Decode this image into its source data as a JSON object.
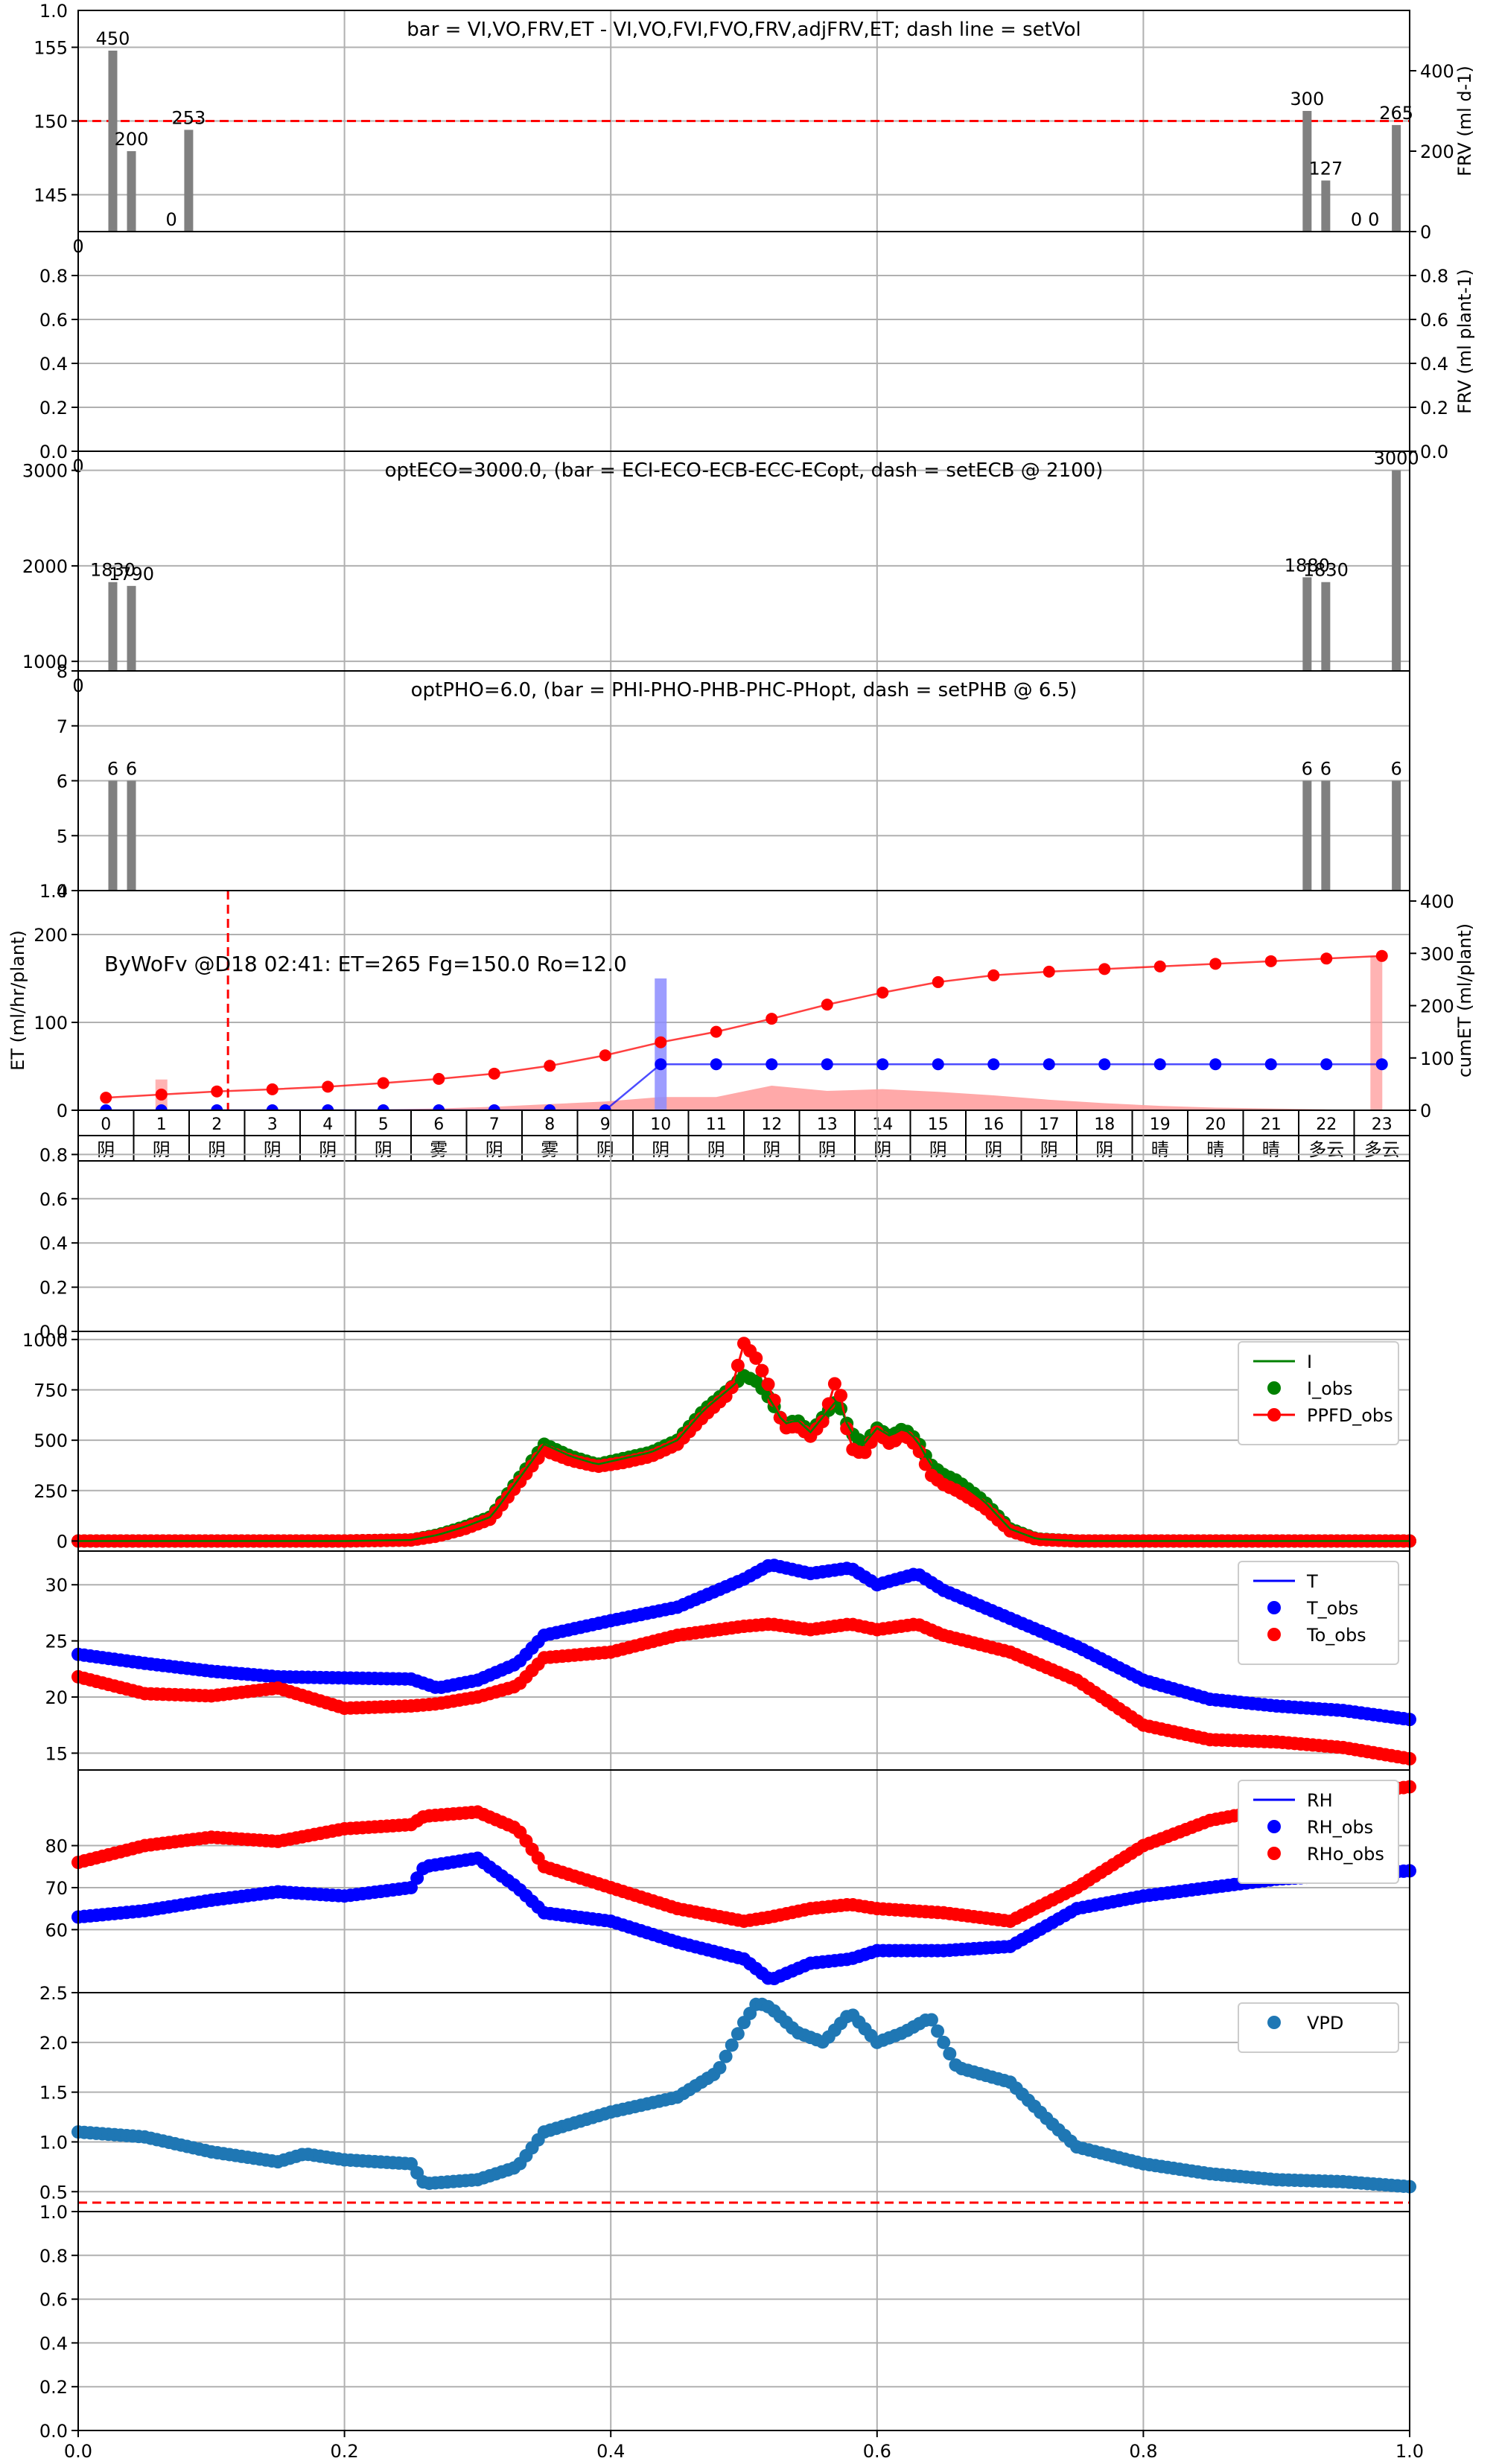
{
  "figure": {
    "background": "#ffffff",
    "grid_color": "#b0b0b0",
    "bar_color": "#808080",
    "red": "#ff0000",
    "green": "#008000",
    "blue": "#0000ff",
    "steel_blue": "#1f77b4",
    "salmon": "#ffa0a0",
    "light_blue": "#8c8cff"
  },
  "chart_data": [
    {
      "id": "p1",
      "type": "bar",
      "title": "bar = VI,VO,FRV,ET - VI,VO,FVI,FVO,FRV,adjFRV,ET; dash line = setVol",
      "ylim": [
        142.5,
        157.5
      ],
      "ylim_right": [
        0,
        550
      ],
      "yticks": [
        "145",
        "150",
        "155"
      ],
      "yticks_right": [
        "0",
        "200",
        "400"
      ],
      "y_top_label": "1.0",
      "y_bottom_corner_label": "0",
      "right_label": "FRV (ml d-1)",
      "hline": {
        "value": 150,
        "style": "dashed",
        "color": "red"
      },
      "bars": [
        {
          "x": 0.026,
          "value": 450,
          "label": "450"
        },
        {
          "x": 0.04,
          "value": 200,
          "label": "200"
        },
        {
          "x": 0.07,
          "value": 0,
          "label": "0"
        },
        {
          "x": 0.083,
          "value": 253,
          "label": "253"
        },
        {
          "x": 0.923,
          "value": 300,
          "label": "300"
        },
        {
          "x": 0.937,
          "value": 127,
          "label": "127"
        },
        {
          "x": 0.96,
          "value": 0,
          "label": "0"
        },
        {
          "x": 0.973,
          "value": 0,
          "label": "0"
        },
        {
          "x": 0.99,
          "value": 265,
          "label": "265"
        }
      ]
    },
    {
      "id": "p2",
      "type": "line",
      "ylim": [
        0,
        1
      ],
      "yticks": [
        "0.0",
        "0.2",
        "0.4",
        "0.6",
        "0.8"
      ],
      "yticks_right": [
        "0.0",
        "0.2",
        "0.4",
        "0.6",
        "0.8"
      ],
      "y_bottom_corner_label": "0",
      "right_label": "FRV (ml plant-1)"
    },
    {
      "id": "p3",
      "type": "bar",
      "title": "optECO=3000.0, (bar = ECI-ECO-ECB-ECC-ECopt, dash = setECB @ 2100)",
      "ylim": [
        900,
        3200
      ],
      "yticks": [
        "1000",
        "2000",
        "3000"
      ],
      "y_bottom_corner_label": "0",
      "bars": [
        {
          "x": 0.026,
          "value": 1830,
          "label": "1830"
        },
        {
          "x": 0.04,
          "value": 1790,
          "label": "1790"
        },
        {
          "x": 0.923,
          "value": 1880,
          "label": "1880"
        },
        {
          "x": 0.937,
          "value": 1830,
          "label": "1830"
        },
        {
          "x": 0.99,
          "value": 3000,
          "label": "3000"
        }
      ]
    },
    {
      "id": "p4",
      "type": "bar",
      "title": "optPHO=6.0, (bar = PHI-PHO-PHB-PHC-PHopt, dash = setPHB @ 6.5)",
      "ylim": [
        4,
        8
      ],
      "yticks": [
        "4",
        "5",
        "6",
        "7",
        "8"
      ],
      "bars": [
        {
          "x": 0.026,
          "value": 6,
          "label": "6"
        },
        {
          "x": 0.04,
          "value": 6,
          "label": "6"
        },
        {
          "x": 0.923,
          "value": 6,
          "label": "6"
        },
        {
          "x": 0.937,
          "value": 6,
          "label": "6"
        },
        {
          "x": 0.99,
          "value": 6,
          "label": "6"
        }
      ]
    },
    {
      "id": "p5",
      "type": "line",
      "annotation": "ByWoFv @D18 02:41: ET=265 Fg=150.0 Ro=12.0",
      "ylabel": "ET (ml/hr/plant)",
      "right_label": "cumET (ml/plant)",
      "ylim": [
        0,
        250
      ],
      "ylim_right": [
        0,
        420
      ],
      "yticks": [
        "0",
        "100",
        "200"
      ],
      "y_top_label": "1.0",
      "yticks_right": [
        "0",
        "100",
        "200",
        "300",
        "400"
      ],
      "vline": {
        "hour": 2.2,
        "style": "dashed",
        "color": "red"
      },
      "hours": [
        "0",
        "1",
        "2",
        "3",
        "4",
        "5",
        "6",
        "7",
        "8",
        "9",
        "10",
        "11",
        "12",
        "13",
        "14",
        "15",
        "16",
        "17",
        "18",
        "19",
        "20",
        "21",
        "22",
        "23"
      ],
      "weather": [
        "阴",
        "阴",
        "阴",
        "阴",
        "阴",
        "阴",
        "雾",
        "阴",
        "雾",
        "阴",
        "阴",
        "阴",
        "阴",
        "阴",
        "阴",
        "阴",
        "阴",
        "阴",
        "阴",
        "晴",
        "晴",
        "晴",
        "多云",
        "多云"
      ],
      "et_area": [
        0,
        0,
        1,
        1,
        1,
        1,
        2,
        4,
        7,
        10,
        15,
        15,
        28,
        22,
        24,
        21,
        17,
        12,
        8,
        5,
        3,
        2,
        1,
        0
      ],
      "pink_bars": [
        {
          "hour": 1,
          "value": 35
        },
        {
          "hour": 22.9,
          "value": 175
        }
      ],
      "blue_bar": {
        "hour": 10,
        "value": 150
      },
      "cum_et": [
        24,
        30,
        36,
        40,
        45,
        52,
        60,
        70,
        85,
        105,
        130,
        150,
        175,
        202,
        225,
        245,
        258,
        265,
        270,
        275,
        280,
        285,
        290,
        295
      ],
      "blue_line": {
        "start_hour": 10,
        "before": 0,
        "after": 88
      }
    },
    {
      "id": "p6",
      "type": "line",
      "ylim": [
        0,
        1
      ],
      "yticks": [
        "0.0",
        "0.2",
        "0.4",
        "0.6",
        "0.8"
      ]
    },
    {
      "id": "p7",
      "type": "line",
      "ylim": [
        -50,
        1040
      ],
      "yticks": [
        "0",
        "250",
        "500",
        "750",
        "1000"
      ],
      "series": [
        {
          "name": "I",
          "key": "I",
          "style": "line",
          "color": "green"
        },
        {
          "name": "I_obs",
          "key": "I_obs",
          "style": "dot",
          "color": "green"
        },
        {
          "name": "PPFD_obs",
          "key": "PPFD_obs",
          "style": "line+dot",
          "color": "red"
        }
      ],
      "x": [
        0.0,
        0.05,
        0.1,
        0.15,
        0.2,
        0.25,
        0.27,
        0.29,
        0.31,
        0.33,
        0.35,
        0.37,
        0.39,
        0.41,
        0.43,
        0.45,
        0.47,
        0.49,
        0.5,
        0.51,
        0.52,
        0.53,
        0.54,
        0.55,
        0.56,
        0.57,
        0.58,
        0.59,
        0.6,
        0.61,
        0.62,
        0.63,
        0.64,
        0.65,
        0.66,
        0.68,
        0.7,
        0.72,
        0.75,
        0.8,
        0.85,
        0.9,
        0.95,
        1.0
      ],
      "I_obs": [
        0,
        0,
        0,
        0,
        0,
        5,
        30,
        70,
        120,
        300,
        480,
        420,
        380,
        410,
        440,
        500,
        650,
        760,
        820,
        790,
        700,
        580,
        600,
        540,
        620,
        700,
        540,
        480,
        560,
        520,
        560,
        500,
        380,
        330,
        300,
        200,
        60,
        10,
        0,
        0,
        0,
        0,
        0,
        0
      ],
      "PPFD_obs": [
        0,
        0,
        0,
        0,
        0,
        5,
        25,
        60,
        110,
        280,
        450,
        400,
        370,
        390,
        420,
        480,
        620,
        740,
        980,
        900,
        750,
        560,
        570,
        520,
        600,
        820,
        460,
        430,
        540,
        480,
        530,
        470,
        330,
        280,
        250,
        170,
        50,
        8,
        0,
        0,
        0,
        0,
        0,
        0
      ]
    },
    {
      "id": "p8",
      "type": "line",
      "ylim": [
        13.5,
        33
      ],
      "yticks": [
        "15",
        "20",
        "25",
        "30"
      ],
      "series": [
        {
          "name": "T",
          "key": "T",
          "style": "line",
          "color": "blue"
        },
        {
          "name": "T_obs",
          "key": "T_obs",
          "style": "dot",
          "color": "blue"
        },
        {
          "name": "To_obs",
          "key": "To_obs",
          "style": "dot",
          "color": "red"
        }
      ],
      "x": [
        0.0,
        0.05,
        0.1,
        0.15,
        0.2,
        0.25,
        0.27,
        0.3,
        0.33,
        0.35,
        0.4,
        0.45,
        0.5,
        0.52,
        0.55,
        0.58,
        0.6,
        0.63,
        0.65,
        0.7,
        0.75,
        0.8,
        0.85,
        0.9,
        0.95,
        1.0
      ],
      "T_obs": [
        23.8,
        23,
        22.3,
        21.8,
        21.7,
        21.6,
        20.8,
        21.5,
        23,
        25.5,
        26.8,
        28,
        30.5,
        31.8,
        31,
        31.5,
        30,
        31,
        29.5,
        27,
        24.5,
        21.5,
        19.8,
        19.2,
        18.8,
        18
      ],
      "To_obs": [
        21.8,
        20.3,
        20.1,
        20.8,
        19,
        19.2,
        19.4,
        20,
        21,
        23.5,
        24,
        25.5,
        26.3,
        26.5,
        26,
        26.5,
        26,
        26.5,
        25.5,
        24,
        21.5,
        17.5,
        16.2,
        16,
        15.5,
        14.5
      ]
    },
    {
      "id": "p9",
      "type": "line",
      "ylim": [
        45,
        98
      ],
      "yticks": [
        "60",
        "70",
        "80"
      ],
      "ytick_values": [
        60,
        70,
        80
      ],
      "series": [
        {
          "name": "RH",
          "key": "RH",
          "style": "line",
          "color": "blue"
        },
        {
          "name": "RH_obs",
          "key": "RH_obs",
          "style": "dot",
          "color": "blue"
        },
        {
          "name": "RHo_obs",
          "key": "RHo_obs",
          "style": "dot",
          "color": "red"
        }
      ],
      "x": [
        0.0,
        0.05,
        0.1,
        0.15,
        0.2,
        0.25,
        0.26,
        0.3,
        0.33,
        0.35,
        0.4,
        0.45,
        0.5,
        0.52,
        0.55,
        0.58,
        0.6,
        0.65,
        0.7,
        0.75,
        0.8,
        0.85,
        0.9,
        0.95,
        1.0
      ],
      "RH_obs": [
        63,
        64.5,
        67,
        69,
        68,
        70,
        75,
        77,
        70,
        64,
        62,
        57,
        53,
        48,
        52,
        53,
        55,
        55,
        56,
        65,
        68,
        70,
        72,
        73,
        74
      ],
      "RHo_obs": [
        76,
        80,
        82,
        81,
        84,
        85,
        87,
        88,
        84,
        75,
        70,
        65,
        62,
        63,
        65,
        66,
        65,
        64,
        62,
        70,
        80,
        86,
        89,
        92,
        94
      ]
    },
    {
      "id": "p10",
      "type": "scatter",
      "ylim": [
        0.3,
        2.5
      ],
      "yticks": [
        "0.5",
        "1.0",
        "1.5",
        "2.0",
        "2.5"
      ],
      "hline": {
        "value": 0.39,
        "style": "dashed",
        "color": "red"
      },
      "series": [
        {
          "name": "VPD",
          "key": "VPD",
          "style": "dot",
          "color": "steel_blue"
        }
      ],
      "x": [
        0.0,
        0.05,
        0.1,
        0.15,
        0.17,
        0.2,
        0.25,
        0.26,
        0.3,
        0.33,
        0.35,
        0.4,
        0.45,
        0.48,
        0.5,
        0.51,
        0.52,
        0.54,
        0.56,
        0.58,
        0.6,
        0.62,
        0.64,
        0.66,
        0.7,
        0.73,
        0.75,
        0.8,
        0.85,
        0.9,
        0.95,
        1.0
      ],
      "VPD": [
        1.1,
        1.05,
        0.9,
        0.8,
        0.88,
        0.82,
        0.78,
        0.58,
        0.62,
        0.75,
        1.1,
        1.3,
        1.45,
        1.7,
        2.2,
        2.4,
        2.35,
        2.1,
        2.0,
        2.3,
        2.0,
        2.1,
        2.25,
        1.75,
        1.6,
        1.2,
        0.95,
        0.78,
        0.68,
        0.62,
        0.6,
        0.55
      ]
    },
    {
      "id": "p11",
      "type": "line",
      "ylim": [
        0,
        1
      ],
      "yticks": [
        "0.0",
        "0.2",
        "0.4",
        "0.6",
        "0.8",
        "1.0"
      ],
      "xticks": [
        "0.0",
        "0.2",
        "0.4",
        "0.6",
        "0.8",
        "1.0"
      ]
    }
  ]
}
